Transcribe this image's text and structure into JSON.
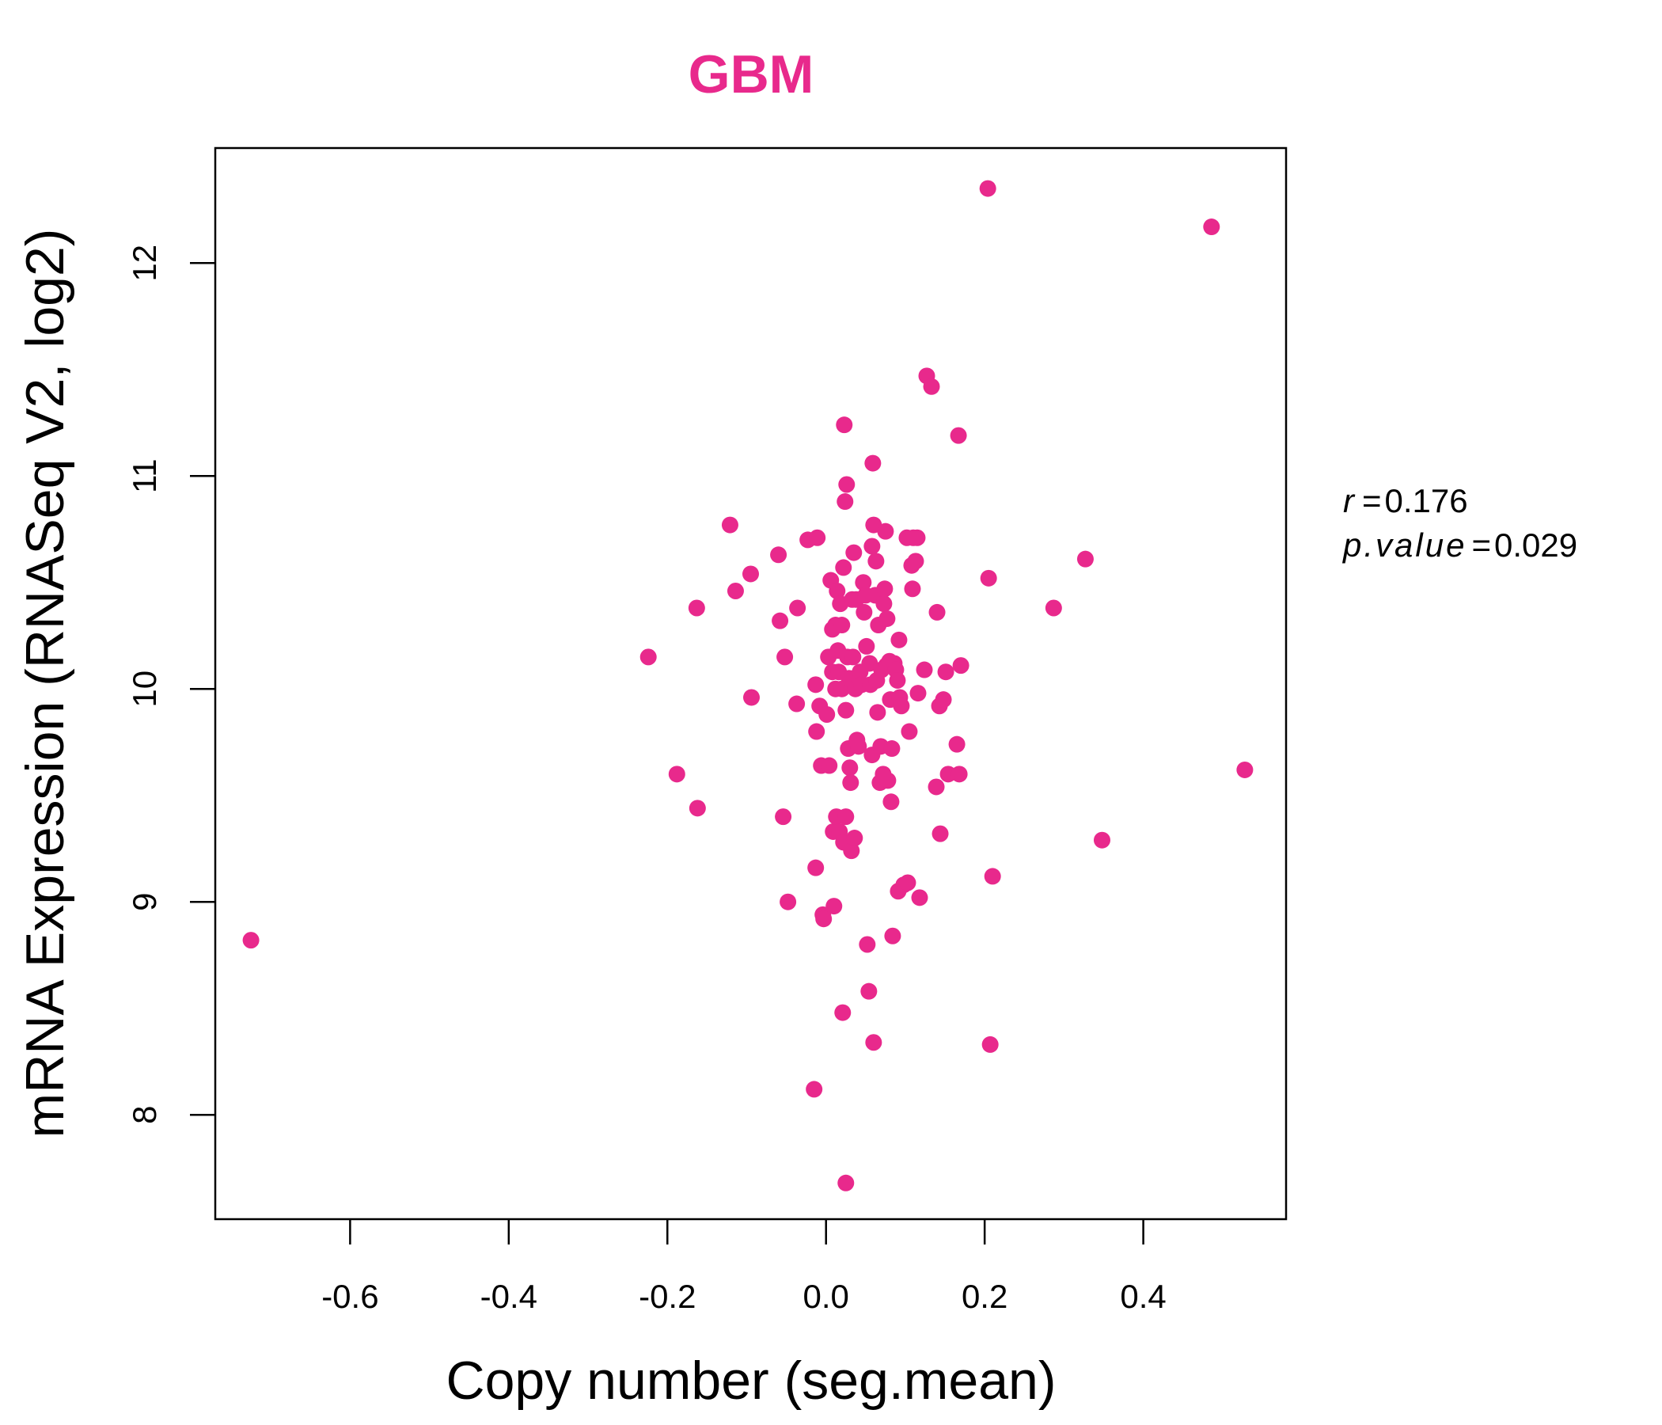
{
  "colors": {
    "accent": "#e8298c",
    "axis": "#000000",
    "background": "#ffffff"
  },
  "stats": {
    "r_label": "r",
    "r_value": "0.176",
    "p_label": "p.value",
    "p_value": "0.029",
    "equals": "="
  },
  "chart_data": {
    "type": "scatter",
    "title": "GBM",
    "xlabel": "Copy number (seg.mean)",
    "ylabel": "mRNA Expression (RNASeq V2, log2)",
    "xlim": [
      -0.77,
      0.58
    ],
    "ylim": [
      7.51,
      12.54
    ],
    "xticks": [
      -0.6,
      -0.4,
      -0.2,
      0.0,
      0.2,
      0.4
    ],
    "xtick_labels": [
      "-0.6",
      "-0.4",
      "-0.2",
      "0.0",
      "0.2",
      "0.4"
    ],
    "yticks": [
      8,
      9,
      10,
      11,
      12
    ],
    "ytick_labels": [
      "8",
      "9",
      "10",
      "11",
      "12"
    ],
    "points": [
      [
        -0.725,
        8.82
      ],
      [
        -0.224,
        10.15
      ],
      [
        -0.188,
        9.6
      ],
      [
        -0.162,
        9.44
      ],
      [
        -0.163,
        10.38
      ],
      [
        -0.121,
        10.77
      ],
      [
        -0.114,
        10.46
      ],
      [
        -0.095,
        10.54
      ],
      [
        -0.094,
        9.96
      ],
      [
        -0.06,
        10.63
      ],
      [
        -0.058,
        10.32
      ],
      [
        -0.054,
        9.4
      ],
      [
        -0.052,
        10.15
      ],
      [
        -0.048,
        9.0
      ],
      [
        -0.037,
        9.93
      ],
      [
        -0.036,
        10.38
      ],
      [
        -0.023,
        10.7
      ],
      [
        -0.011,
        10.71
      ],
      [
        -0.013,
        10.02
      ],
      [
        -0.012,
        9.8
      ],
      [
        -0.013,
        9.16
      ],
      [
        -0.015,
        8.12
      ],
      [
        -0.008,
        9.92
      ],
      [
        -0.006,
        9.64
      ],
      [
        -0.004,
        8.94
      ],
      [
        -0.003,
        8.92
      ],
      [
        0.001,
        9.88
      ],
      [
        0.003,
        10.15
      ],
      [
        0.004,
        9.64
      ],
      [
        0.006,
        10.51
      ],
      [
        0.008,
        10.28
      ],
      [
        0.008,
        10.08
      ],
      [
        0.009,
        9.33
      ],
      [
        0.01,
        8.98
      ],
      [
        0.012,
        10.3
      ],
      [
        0.012,
        10.0
      ],
      [
        0.013,
        9.4
      ],
      [
        0.014,
        10.46
      ],
      [
        0.015,
        10.18
      ],
      [
        0.016,
        10.08
      ],
      [
        0.017,
        9.33
      ],
      [
        0.018,
        10.4
      ],
      [
        0.02,
        10.3
      ],
      [
        0.02,
        10.0
      ],
      [
        0.021,
        8.48
      ],
      [
        0.022,
        10.57
      ],
      [
        0.022,
        9.28
      ],
      [
        0.023,
        11.24
      ],
      [
        0.024,
        10.88
      ],
      [
        0.025,
        9.9
      ],
      [
        0.025,
        9.4
      ],
      [
        0.025,
        7.68
      ],
      [
        0.026,
        10.96
      ],
      [
        0.027,
        10.15
      ],
      [
        0.028,
        9.72
      ],
      [
        0.029,
        10.05
      ],
      [
        0.03,
        9.63
      ],
      [
        0.031,
        9.56
      ],
      [
        0.032,
        9.24
      ],
      [
        0.033,
        10.42
      ],
      [
        0.034,
        10.15
      ],
      [
        0.035,
        10.64
      ],
      [
        0.036,
        9.3
      ],
      [
        0.037,
        10.0
      ],
      [
        0.038,
        10.42
      ],
      [
        0.039,
        9.76
      ],
      [
        0.04,
        10.06
      ],
      [
        0.041,
        9.73
      ],
      [
        0.043,
        10.08
      ],
      [
        0.045,
        10.02
      ],
      [
        0.047,
        10.5
      ],
      [
        0.048,
        10.36
      ],
      [
        0.05,
        10.44
      ],
      [
        0.051,
        10.2
      ],
      [
        0.052,
        8.8
      ],
      [
        0.054,
        8.58
      ],
      [
        0.055,
        10.12
      ],
      [
        0.056,
        10.02
      ],
      [
        0.058,
        10.67
      ],
      [
        0.058,
        9.69
      ],
      [
        0.059,
        11.06
      ],
      [
        0.06,
        10.77
      ],
      [
        0.06,
        8.34
      ],
      [
        0.062,
        10.44
      ],
      [
        0.063,
        10.6
      ],
      [
        0.064,
        10.04
      ],
      [
        0.065,
        9.89
      ],
      [
        0.066,
        10.3
      ],
      [
        0.068,
        9.56
      ],
      [
        0.069,
        9.73
      ],
      [
        0.07,
        10.09
      ],
      [
        0.072,
        9.6
      ],
      [
        0.073,
        10.4
      ],
      [
        0.074,
        10.47
      ],
      [
        0.075,
        10.74
      ],
      [
        0.076,
        10.11
      ],
      [
        0.077,
        10.33
      ],
      [
        0.078,
        9.57
      ],
      [
        0.08,
        10.13
      ],
      [
        0.081,
        9.95
      ],
      [
        0.082,
        9.47
      ],
      [
        0.083,
        9.72
      ],
      [
        0.084,
        8.84
      ],
      [
        0.086,
        10.12
      ],
      [
        0.088,
        10.09
      ],
      [
        0.09,
        10.04
      ],
      [
        0.091,
        9.05
      ],
      [
        0.092,
        10.23
      ],
      [
        0.093,
        9.96
      ],
      [
        0.095,
        9.92
      ],
      [
        0.098,
        9.08
      ],
      [
        0.102,
        10.71
      ],
      [
        0.103,
        9.09
      ],
      [
        0.105,
        9.8
      ],
      [
        0.108,
        10.58
      ],
      [
        0.109,
        10.47
      ],
      [
        0.11,
        10.71
      ],
      [
        0.113,
        10.6
      ],
      [
        0.115,
        10.71
      ],
      [
        0.116,
        9.98
      ],
      [
        0.118,
        9.02
      ],
      [
        0.124,
        10.09
      ],
      [
        0.127,
        11.47
      ],
      [
        0.133,
        11.42
      ],
      [
        0.139,
        9.54
      ],
      [
        0.14,
        10.36
      ],
      [
        0.143,
        9.92
      ],
      [
        0.144,
        9.32
      ],
      [
        0.148,
        9.95
      ],
      [
        0.151,
        10.08
      ],
      [
        0.154,
        9.6
      ],
      [
        0.165,
        9.74
      ],
      [
        0.167,
        11.19
      ],
      [
        0.168,
        9.6
      ],
      [
        0.17,
        10.11
      ],
      [
        0.204,
        12.35
      ],
      [
        0.205,
        10.52
      ],
      [
        0.207,
        8.33
      ],
      [
        0.21,
        9.12
      ],
      [
        0.287,
        10.38
      ],
      [
        0.327,
        10.61
      ],
      [
        0.348,
        9.29
      ],
      [
        0.486,
        12.17
      ],
      [
        0.528,
        9.62
      ]
    ]
  }
}
